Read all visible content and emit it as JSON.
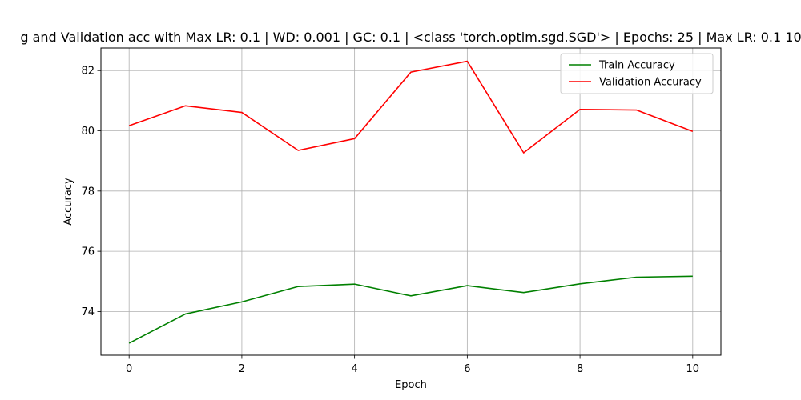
{
  "chart_data": {
    "type": "line",
    "title": "g and Validation acc with Max LR: 0.1 | WD: 0.001 | GC: 0.1 | <class 'torch.optim.sgd.SGD'> | Epochs: 25 | Max LR: 0.1 10",
    "xlabel": "Epoch",
    "ylabel": "Accuracy",
    "xlim": [
      -0.5,
      10.5
    ],
    "ylim": [
      72.55,
      82.75
    ],
    "xticks": [
      0,
      2,
      4,
      6,
      8,
      10
    ],
    "yticks": [
      74,
      76,
      78,
      80,
      82
    ],
    "grid": true,
    "legend_position": "upper-right",
    "x": [
      0,
      1,
      2,
      3,
      4,
      5,
      6,
      7,
      8,
      9,
      10
    ],
    "series": [
      {
        "name": "Train Accuracy",
        "color": "#008000",
        "values": [
          72.95,
          73.92,
          74.32,
          74.83,
          74.91,
          74.52,
          74.86,
          74.63,
          74.92,
          75.14,
          75.17
        ]
      },
      {
        "name": "Validation Accuracy",
        "color": "#ff0000",
        "values": [
          80.17,
          80.83,
          80.61,
          79.35,
          79.74,
          81.95,
          82.31,
          79.27,
          80.71,
          80.69,
          79.98
        ]
      }
    ]
  }
}
